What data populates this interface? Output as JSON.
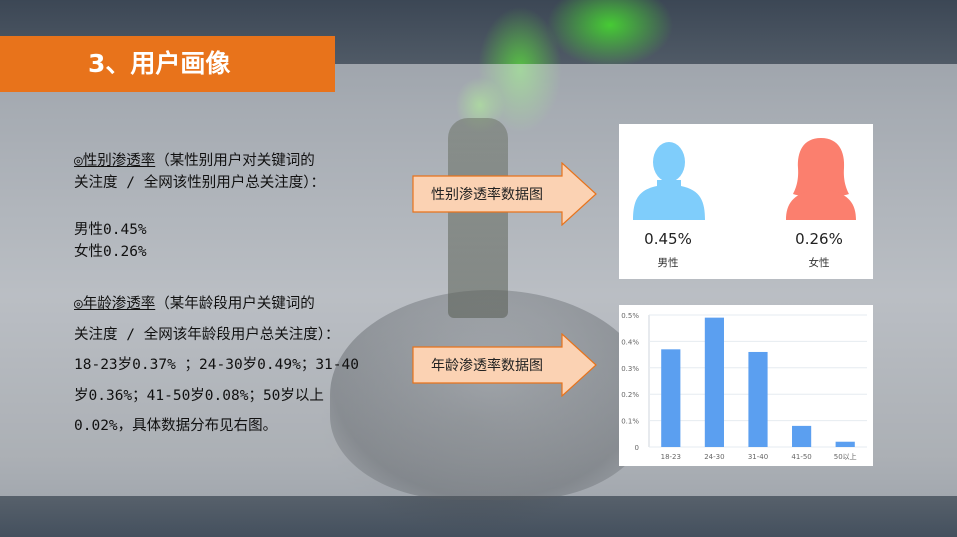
{
  "header": {
    "title": "3、用户画像"
  },
  "gender_section": {
    "heading": "◎性别渗透率",
    "heading_rest": "（某性别用户对关键词的",
    "line2": "关注度 / 全网该性别用户总关注度）：",
    "male_line": "男性0.45%",
    "female_line": "女性0.26%"
  },
  "age_section": {
    "heading": "◎年龄渗透率",
    "heading_rest": "（某年龄段用户关键词的",
    "line2": "关注度 / 全网该年龄段用户总关注度）：",
    "line3": "18-23岁0.37% ；24-30岁0.49%；31-40",
    "line4": "岁0.36%；41-50岁0.08%；50岁以上",
    "line5": "0.02%，具体数据分布见右图。"
  },
  "arrows": {
    "gender_label": "性别渗透率数据图",
    "age_label": "年龄渗透率数据图",
    "fill_color": "#fbd2b3",
    "stroke_color": "#e8731b"
  },
  "gender_card": {
    "male": {
      "value": "0.45%",
      "label": "男性",
      "color": "#7fcdfb",
      "icon": "male-user-icon"
    },
    "female": {
      "value": "0.26%",
      "label": "女性",
      "color": "#fb7f6e",
      "icon": "female-user-icon"
    }
  },
  "chart_data": {
    "type": "bar",
    "categories": [
      "18-23",
      "24-30",
      "31-40",
      "41-50",
      "50以上"
    ],
    "values": [
      0.37,
      0.49,
      0.36,
      0.08,
      0.02
    ],
    "ytick_labels": [
      "0",
      "0.1%",
      "0.2%",
      "0.3%",
      "0.4%",
      "0.5%"
    ],
    "ytick_values": [
      0,
      0.1,
      0.2,
      0.3,
      0.4,
      0.5
    ],
    "ylim": [
      0,
      0.5
    ],
    "bar_color": "#5b9ff0",
    "grid": true
  }
}
